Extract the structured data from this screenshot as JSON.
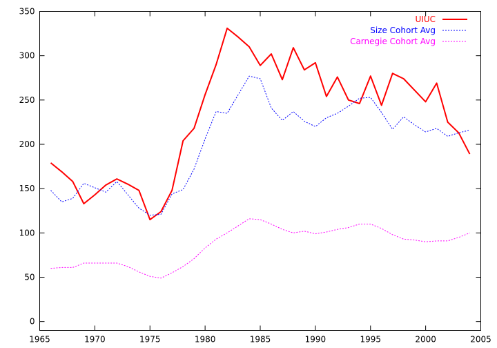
{
  "chart_data": {
    "type": "line",
    "title": "",
    "xlabel": "",
    "ylabel": "",
    "xlim": [
      1965,
      2005
    ],
    "ylim": [
      -10,
      350
    ],
    "x_ticks": [
      1965,
      1970,
      1975,
      1980,
      1985,
      1990,
      1995,
      2000,
      2005
    ],
    "y_ticks": [
      0,
      50,
      100,
      150,
      200,
      250,
      300,
      350
    ],
    "grid": false,
    "legend_position": "top-right",
    "series": [
      {
        "name": "UIUC",
        "color": "#ff0000",
        "line_style": "solid",
        "x": [
          1966,
          1967,
          1968,
          1969,
          1970,
          1971,
          1972,
          1973,
          1974,
          1975,
          1976,
          1977,
          1978,
          1979,
          1980,
          1981,
          1982,
          1983,
          1984,
          1985,
          1986,
          1987,
          1988,
          1989,
          1990,
          1991,
          1992,
          1993,
          1994,
          1995,
          1996,
          1997,
          1998,
          1999,
          2000,
          2001,
          2002,
          2003,
          2004
        ],
        "values": [
          179,
          169,
          158,
          133,
          143,
          154,
          161,
          155,
          148,
          115,
          124,
          148,
          204,
          218,
          256,
          290,
          331,
          321,
          310,
          289,
          302,
          273,
          309,
          284,
          292,
          254,
          276,
          250,
          246,
          277,
          244,
          280,
          274,
          261,
          248,
          269,
          225,
          213,
          189
        ]
      },
      {
        "name": "Size Cohort Avg",
        "color": "#0000ff",
        "line_style": "dotted",
        "x": [
          1966,
          1967,
          1968,
          1969,
          1970,
          1971,
          1972,
          1973,
          1974,
          1975,
          1976,
          1977,
          1978,
          1979,
          1980,
          1981,
          1982,
          1983,
          1984,
          1985,
          1986,
          1987,
          1988,
          1989,
          1990,
          1991,
          1992,
          1993,
          1994,
          1995,
          1996,
          1997,
          1998,
          1999,
          2000,
          2001,
          2002,
          2003,
          2004
        ],
        "values": [
          148,
          135,
          139,
          156,
          151,
          146,
          158,
          143,
          128,
          120,
          121,
          144,
          149,
          172,
          206,
          237,
          235,
          256,
          277,
          274,
          241,
          227,
          237,
          226,
          220,
          230,
          235,
          243,
          252,
          253,
          236,
          217,
          231,
          222,
          214,
          218,
          209,
          213,
          216
        ]
      },
      {
        "name": "Carnegie Cohort Avg",
        "color": "#ff00ff",
        "line_style": "dotted",
        "x": [
          1966,
          1967,
          1968,
          1969,
          1970,
          1971,
          1972,
          1973,
          1974,
          1975,
          1976,
          1977,
          1978,
          1979,
          1980,
          1981,
          1982,
          1983,
          1984,
          1985,
          1986,
          1987,
          1988,
          1989,
          1990,
          1991,
          1992,
          1993,
          1994,
          1995,
          1996,
          1997,
          1998,
          1999,
          2000,
          2001,
          2002,
          2003,
          2004
        ],
        "values": [
          60,
          61,
          61,
          66,
          66,
          66,
          66,
          62,
          56,
          51,
          49,
          55,
          62,
          71,
          83,
          93,
          100,
          108,
          116,
          115,
          110,
          104,
          100,
          102,
          99,
          101,
          104,
          106,
          110,
          110,
          105,
          98,
          93,
          92,
          90,
          91,
          91,
          95,
          100
        ]
      }
    ]
  }
}
